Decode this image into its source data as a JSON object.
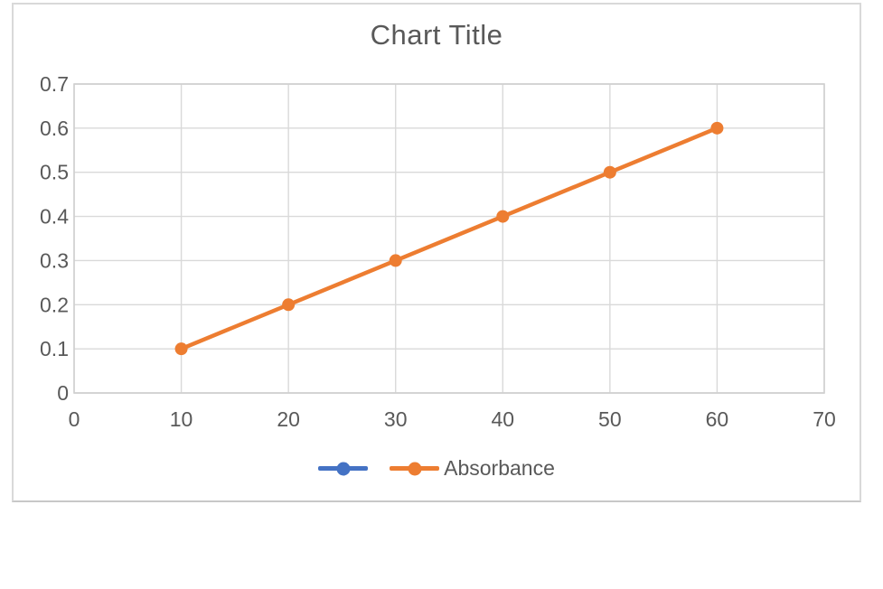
{
  "chart": {
    "title": "Chart Title",
    "text_color": "#595959",
    "gridline_color": "#D9D9D9",
    "plot_border_color": "#CFCFCF",
    "chart_border_color": "#D9D9D9",
    "background": "#FFFFFF"
  },
  "chart_data": {
    "type": "line",
    "title": "Chart Title",
    "xlabel": "",
    "ylabel": "",
    "xlim": [
      0,
      70
    ],
    "ylim": [
      0,
      0.7
    ],
    "xticks": [
      0,
      10,
      20,
      30,
      40,
      50,
      60,
      70
    ],
    "xtick_labels": [
      "0",
      "10",
      "20",
      "30",
      "40",
      "50",
      "60",
      "70"
    ],
    "yticks": [
      0,
      0.1,
      0.2,
      0.3,
      0.4,
      0.5,
      0.6,
      0.7
    ],
    "ytick_labels": [
      "0",
      "0.1",
      "0.2",
      "0.3",
      "0.4",
      "0.5",
      "0.6",
      "0.7"
    ],
    "grid": true,
    "legend_position": "bottom-center",
    "series": [
      {
        "name": "",
        "color": "#4472C4",
        "x": [],
        "y": []
      },
      {
        "name": "Absorbance",
        "color": "#ED7D31",
        "x": [
          10,
          20,
          30,
          40,
          50,
          60
        ],
        "y": [
          0.1,
          0.2,
          0.3,
          0.4,
          0.5,
          0.6
        ]
      }
    ]
  }
}
